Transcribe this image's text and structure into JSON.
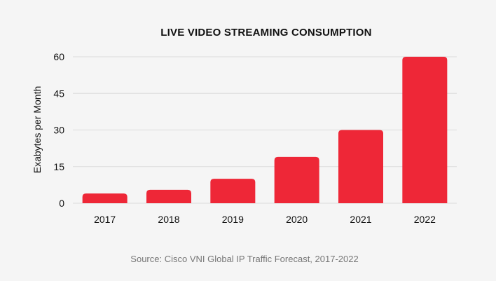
{
  "chart_data": {
    "type": "bar",
    "title": "LIVE VIDEO STREAMING CONSUMPTION",
    "xlabel": "",
    "ylabel": "Exabytes per Month",
    "categories": [
      "2017",
      "2018",
      "2019",
      "2020",
      "2021",
      "2022"
    ],
    "values": [
      4,
      5.5,
      10,
      19,
      30,
      60
    ],
    "ylim": [
      0,
      60
    ],
    "yticks": [
      "0",
      "15",
      "30",
      "45",
      "60"
    ],
    "grid": true,
    "legend": "none",
    "bar_color": "#ee2737"
  },
  "footer": {
    "source": "Source: Cisco VNI Global IP Traffic Forecast, 2017-2022"
  }
}
